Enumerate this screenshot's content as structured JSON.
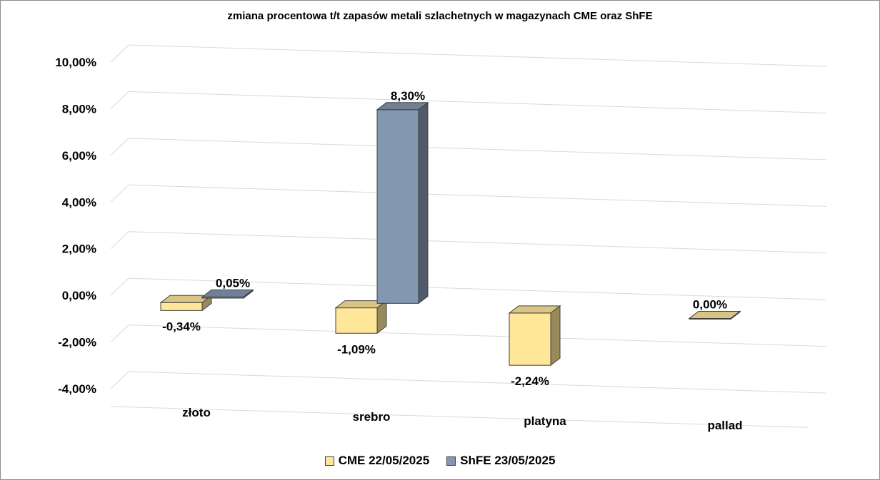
{
  "chart_data": {
    "type": "bar",
    "title": "zmiana procentowa t/t zapasów metali szlachetnych w magazynach CME oraz ShFE",
    "categories": [
      "złoto",
      "srebro",
      "platyna",
      "pallad"
    ],
    "series": [
      {
        "name": "CME 22/05/2025",
        "values": [
          -0.34,
          -1.09,
          -2.24,
          0.0
        ],
        "labels": [
          "-0,34%",
          "-1,09%",
          "-2,24%",
          "0,00%"
        ],
        "color": "#FFE699"
      },
      {
        "name": "ShFE 23/05/2025",
        "values": [
          0.05,
          8.3,
          null,
          null
        ],
        "labels": [
          "0,05%",
          "8,30%",
          "",
          ""
        ],
        "color": "#8497B0"
      }
    ],
    "y_ticks": [
      10,
      8,
      6,
      4,
      2,
      0,
      -2,
      -4
    ],
    "y_tick_labels": [
      "10,00%",
      "8,00%",
      "6,00%",
      "4,00%",
      "2,00%",
      "0,00%",
      "-2,00%",
      "-4,00%"
    ],
    "ylim": [
      -4,
      10
    ],
    "grid": true,
    "legend_position": "bottom",
    "xlabel": "",
    "ylabel": ""
  }
}
